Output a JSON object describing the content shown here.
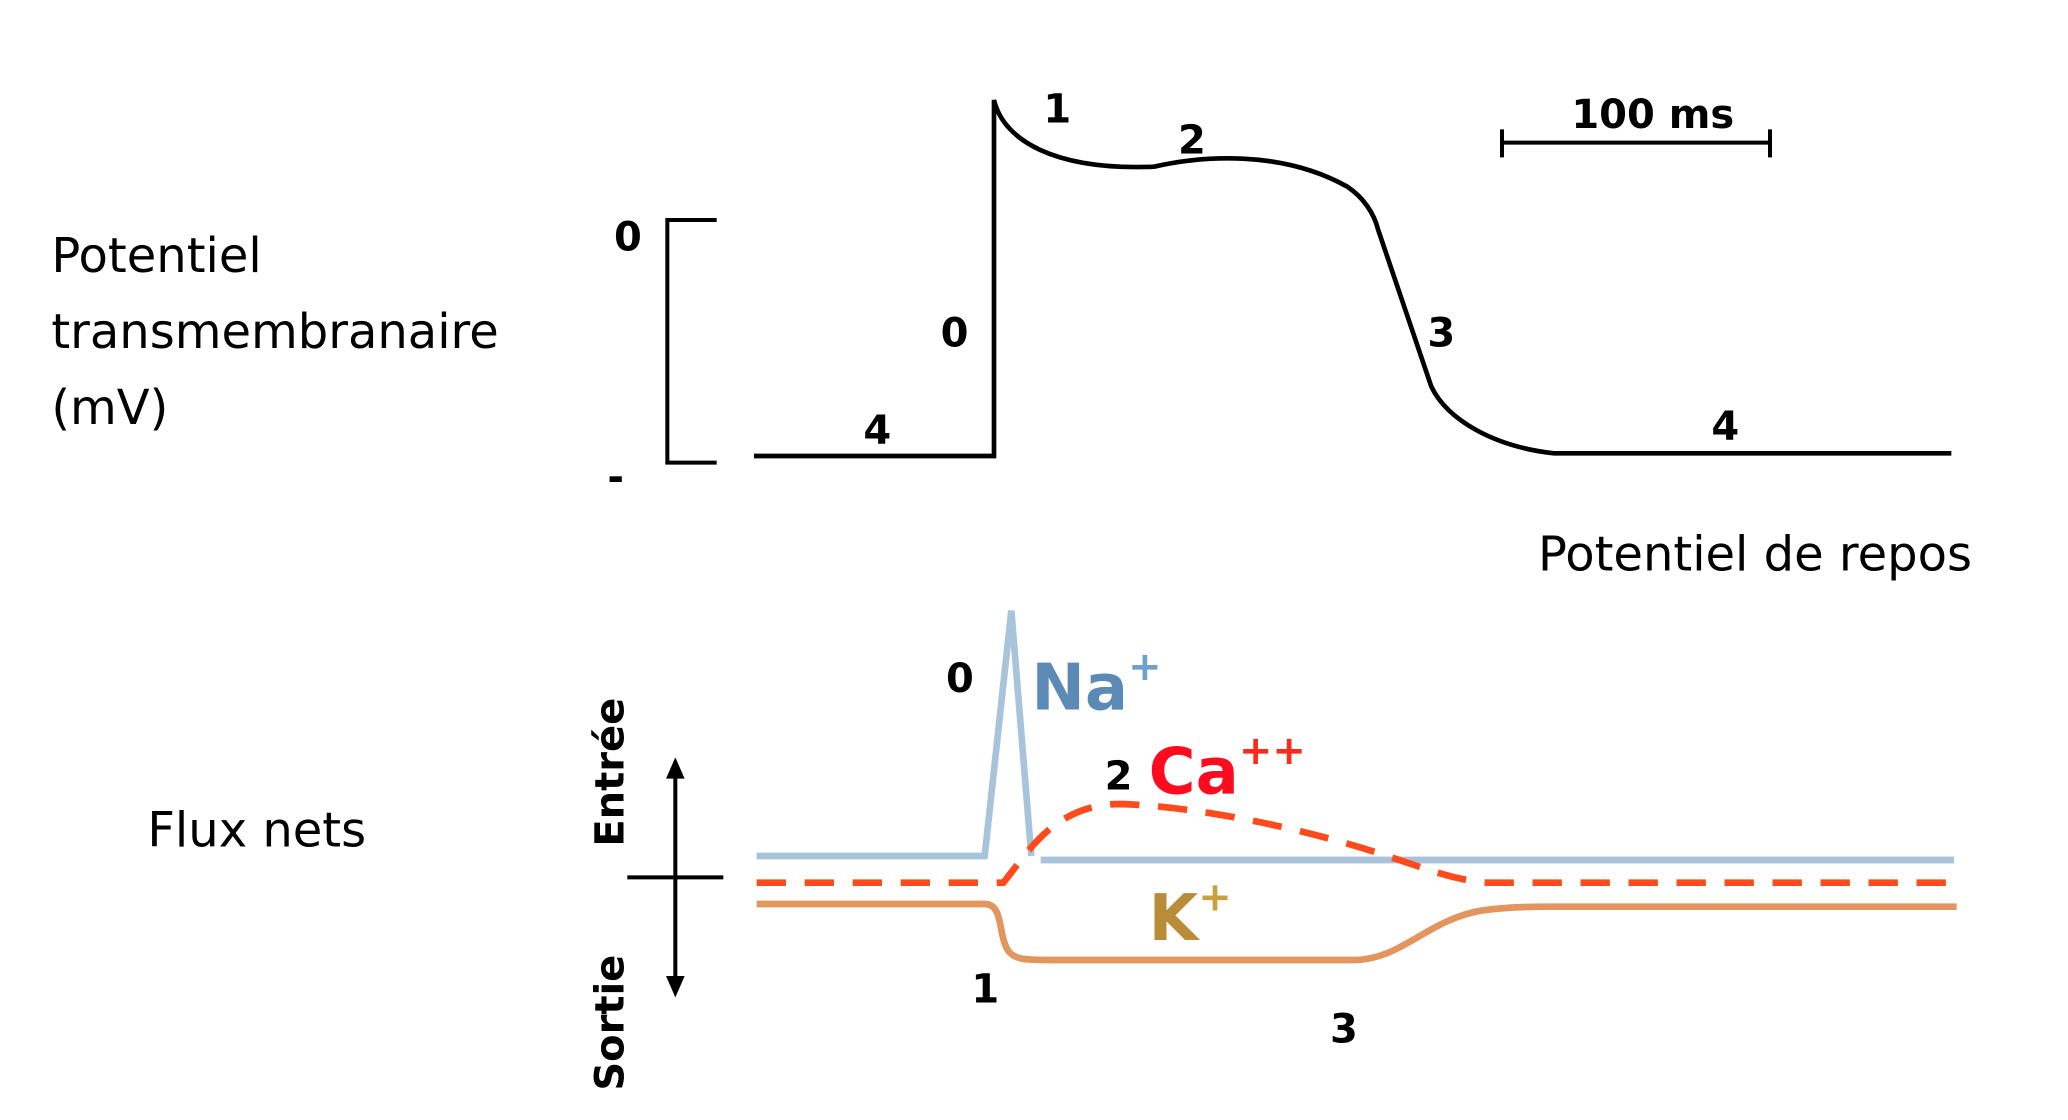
{
  "left_labels": {
    "potential_line1": "Potentiel",
    "potential_line2": "transmembranaire",
    "potential_line3": "(mV)",
    "flux": "Flux nets"
  },
  "top_chart": {
    "scale_top": "0",
    "scale_bottom": "-",
    "scale_bar": "100 ms",
    "phase_labels": {
      "p4_left": "4",
      "p0": "0",
      "p1": "1",
      "p2": "2",
      "p3": "3",
      "p4_right": "4"
    },
    "resting_label": "Potentiel de repos"
  },
  "bottom_chart": {
    "axis_in": "Entrée",
    "axis_out": "Sortie",
    "phase_labels": {
      "p0": "0",
      "p1": "1",
      "p2": "2",
      "p3": "3"
    },
    "ions": {
      "na": {
        "name": "Na",
        "charge": "+",
        "color": "#5a8ab5",
        "line_color": "#a8c4da"
      },
      "ca": {
        "name": "Ca",
        "charge": "++",
        "color": "#ff0a1e",
        "line_color": "#ff4a1c"
      },
      "k": {
        "name": "K",
        "charge": "+",
        "color": "#b98c3a",
        "line_color": "#e3955e"
      }
    }
  }
}
